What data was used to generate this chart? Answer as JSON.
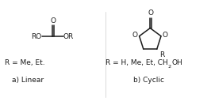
{
  "background_color": "#ffffff",
  "fig_width": 2.66,
  "fig_height": 1.38,
  "dpi": 100,
  "linear_label": "R = Me, Et.",
  "linear_sublabel": "a) Linear",
  "cyclic_sublabel": "b) Cyclic",
  "line_color": "#1a1a1a",
  "line_width": 1.1,
  "font_size": 6.5
}
